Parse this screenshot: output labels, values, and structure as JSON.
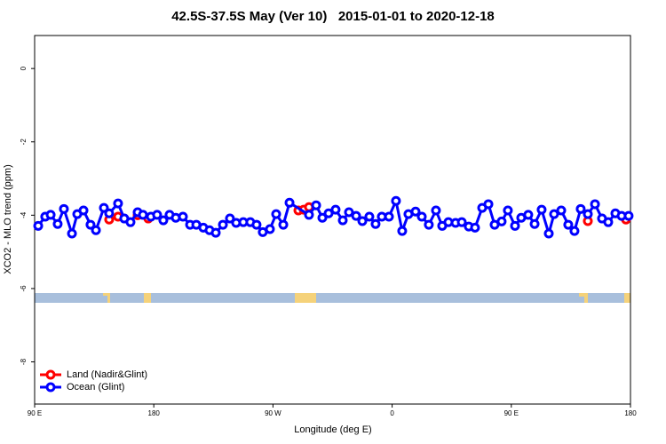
{
  "chart_data": {
    "type": "line",
    "title": "42.5S-37.5S May (Ver 10)   2015-01-01 to 2020-12-18",
    "xlabel": "Longitude (deg E)",
    "ylabel": "XCO2 - MLO trend (ppm)",
    "xlim": [
      90,
      540
    ],
    "ylim": [
      -9.15,
      0.9
    ],
    "xticks": [
      {
        "value": 90,
        "label": "90 E"
      },
      {
        "value": 180,
        "label": "180"
      },
      {
        "value": 270,
        "label": "90 W"
      },
      {
        "value": 360,
        "label": "0"
      },
      {
        "value": 450,
        "label": "90 E"
      },
      {
        "value": 540,
        "label": "180"
      }
    ],
    "yticks": [
      0,
      -2,
      -4,
      -6,
      -8
    ],
    "legend": "bottom-left",
    "series": [
      {
        "name": "Land (Nadir&Glint)",
        "color": "#ff0000",
        "x": [
          146.3,
          153.0,
          null,
          167.8,
          175.8,
          null,
          289.2,
          293.2,
          297.2,
          null,
          507.8,
          null,
          536.6
        ],
        "values": [
          -4.12,
          -4.04,
          null,
          -4.0,
          -4.09,
          null,
          -3.87,
          -3.85,
          -3.78,
          null,
          -4.16,
          null,
          -4.12
        ]
      },
      {
        "name": "Ocean (Glint)",
        "color": "#0000ff",
        "x": [
          92.7,
          98.0,
          102.1,
          107.4,
          112.1,
          118.2,
          122.2,
          126.9,
          132.2,
          136.3,
          142.3,
          146.3,
          153.0,
          157.7,
          162.4,
          167.8,
          171.8,
          177.8,
          182.5,
          187.2,
          191.9,
          196.6,
          202.0,
          207.4,
          212.1,
          217.4,
          222.1,
          226.8,
          232.2,
          237.5,
          242.2,
          247.6,
          252.9,
          257.6,
          262.3,
          267.7,
          272.4,
          277.8,
          282.5,
          297.2,
          302.6,
          307.3,
          312.0,
          317.3,
          322.7,
          327.4,
          332.8,
          337.5,
          342.8,
          347.5,
          352.2,
          357.6,
          362.9,
          367.6,
          372.3,
          377.7,
          382.4,
          387.7,
          393.1,
          397.8,
          402.5,
          407.9,
          412.6,
          417.9,
          422.6,
          428.0,
          432.7,
          437.4,
          442.7,
          447.4,
          452.8,
          457.5,
          462.8,
          467.6,
          472.9,
          478.3,
          482.3,
          487.7,
          493.0,
          497.7,
          502.4,
          507.8,
          513.2,
          518.5,
          523.2,
          528.6,
          533.3,
          538.6
        ],
        "values": [
          -4.29,
          -4.04,
          -3.99,
          -4.24,
          -3.83,
          -4.5,
          -3.97,
          -3.87,
          -4.26,
          -4.41,
          -3.8,
          -3.95,
          -3.68,
          -4.09,
          -4.19,
          -3.92,
          -3.99,
          -4.04,
          -3.99,
          -4.14,
          -3.99,
          -4.07,
          -4.04,
          -4.26,
          -4.26,
          -4.34,
          -4.41,
          -4.48,
          -4.26,
          -4.09,
          -4.21,
          -4.19,
          -4.19,
          -4.26,
          -4.46,
          -4.38,
          -3.97,
          -4.26,
          -3.66,
          -3.99,
          -3.73,
          -4.07,
          -3.95,
          -3.85,
          -4.14,
          -3.92,
          -4.02,
          -4.16,
          -4.04,
          -4.24,
          -4.04,
          -4.04,
          -3.61,
          -4.43,
          -3.97,
          -3.9,
          -4.04,
          -4.26,
          -3.87,
          -4.29,
          -4.19,
          -4.21,
          -4.19,
          -4.31,
          -4.34,
          -3.8,
          -3.7,
          -4.26,
          -4.17,
          -3.87,
          -4.29,
          -4.07,
          -3.99,
          -4.24,
          -3.85,
          -4.5,
          -3.97,
          -3.87,
          -4.26,
          -4.43,
          -3.83,
          -3.97,
          -3.7,
          -4.09,
          -4.19,
          -3.95,
          -4.02,
          -4.02
        ]
      }
    ]
  }
}
